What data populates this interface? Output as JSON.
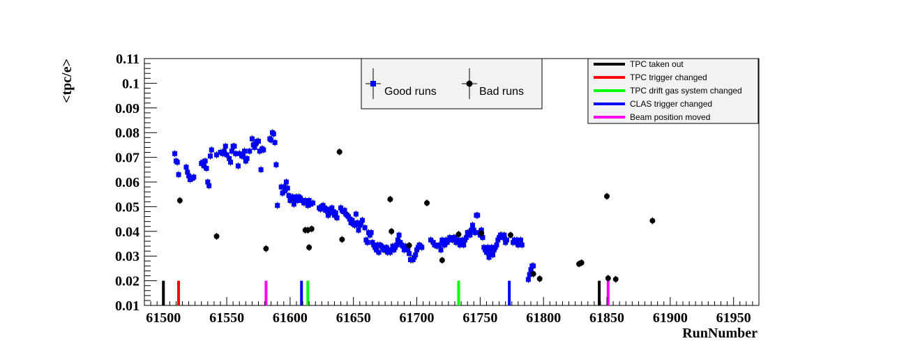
{
  "chart_data": {
    "type": "scatter",
    "xlabel": "RunNumber",
    "ylabel": "<tpc/e>",
    "xlim": [
      61485,
      61970
    ],
    "ylim": [
      0.01,
      0.11
    ],
    "xticks": [
      61500,
      61550,
      61600,
      61650,
      61700,
      61750,
      61800,
      61850,
      61900,
      61950
    ],
    "xtick_labels": [
      "61500",
      "61550",
      "61600",
      "61650",
      "61700",
      "61750",
      "61800",
      "61850",
      "61900",
      "61950"
    ],
    "yticks": [
      0.01,
      0.02,
      0.03,
      0.04,
      0.05,
      0.06,
      0.07,
      0.08,
      0.09,
      0.1,
      0.11
    ],
    "ytick_labels": [
      "0.01",
      "0.02",
      "0.03",
      "0.04",
      "0.05",
      "0.06",
      "0.07",
      "0.08",
      "0.09",
      "0.1",
      "0.11"
    ],
    "grid": false,
    "series": [
      {
        "name": "Good runs",
        "color": "#0000ff",
        "marker": "square",
        "points": [
          [
            61509,
            0.0715
          ],
          [
            61510,
            0.0685
          ],
          [
            61511,
            0.068
          ],
          [
            61512,
            0.063
          ],
          [
            61518,
            0.066
          ],
          [
            61519,
            0.064
          ],
          [
            61520,
            0.0625
          ],
          [
            61521,
            0.061
          ],
          [
            61523,
            0.0615
          ],
          [
            61524,
            0.062
          ],
          [
            61530,
            0.0675
          ],
          [
            61531,
            0.068
          ],
          [
            61532,
            0.0665
          ],
          [
            61533,
            0.0685
          ],
          [
            61534,
            0.0655
          ],
          [
            61535,
            0.06
          ],
          [
            61536,
            0.0585
          ],
          [
            61537,
            0.0705
          ],
          [
            61538,
            0.073
          ],
          [
            61542,
            0.071
          ],
          [
            61545,
            0.072
          ],
          [
            61547,
            0.0715
          ],
          [
            61548,
            0.0725
          ],
          [
            61549,
            0.0745
          ],
          [
            61550,
            0.071
          ],
          [
            61552,
            0.0695
          ],
          [
            61553,
            0.068
          ],
          [
            61554,
            0.0725
          ],
          [
            61555,
            0.0745
          ],
          [
            61556,
            0.0745
          ],
          [
            61557,
            0.0715
          ],
          [
            61559,
            0.0665
          ],
          [
            61560,
            0.0715
          ],
          [
            61562,
            0.0705
          ],
          [
            61563,
            0.0705
          ],
          [
            61564,
            0.0725
          ],
          [
            61565,
            0.0685
          ],
          [
            61566,
            0.0695
          ],
          [
            61568,
            0.0725
          ],
          [
            61570,
            0.0775
          ],
          [
            61571,
            0.075
          ],
          [
            61572,
            0.074
          ],
          [
            61573,
            0.0755
          ],
          [
            61574,
            0.0765
          ],
          [
            61575,
            0.0765
          ],
          [
            61576,
            0.0725
          ],
          [
            61577,
            0.065
          ],
          [
            61578,
            0.0735
          ],
          [
            61579,
            0.073
          ],
          [
            61584,
            0.0775
          ],
          [
            61585,
            0.077
          ],
          [
            61586,
            0.08
          ],
          [
            61587,
            0.0795
          ],
          [
            61588,
            0.076
          ],
          [
            61589,
            0.067
          ],
          [
            61590,
            0.0505
          ],
          [
            61593,
            0.058
          ],
          [
            61594,
            0.0555
          ],
          [
            61595,
            0.058
          ],
          [
            61596,
            0.0565
          ],
          [
            61597,
            0.06
          ],
          [
            61598,
            0.0575
          ],
          [
            61599,
            0.0545
          ],
          [
            61600,
            0.0525
          ],
          [
            61601,
            0.0535
          ],
          [
            61602,
            0.054
          ],
          [
            61603,
            0.051
          ],
          [
            61604,
            0.0525
          ],
          [
            61605,
            0.054
          ],
          [
            61606,
            0.0525
          ],
          [
            61607,
            0.054
          ],
          [
            61608,
            0.0535
          ],
          [
            61609,
            0.0525
          ],
          [
            61610,
            0.0525
          ],
          [
            61611,
            0.0515
          ],
          [
            61612,
            0.0525
          ],
          [
            61613,
            0.052
          ],
          [
            61614,
            0.0505
          ],
          [
            61615,
            0.0525
          ],
          [
            61616,
            0.051
          ],
          [
            61618,
            0.0515
          ],
          [
            61623,
            0.0495
          ],
          [
            61624,
            0.049
          ],
          [
            61625,
            0.05
          ],
          [
            61626,
            0.0505
          ],
          [
            61627,
            0.0495
          ],
          [
            61628,
            0.0485
          ],
          [
            61629,
            0.049
          ],
          [
            61630,
            0.0465
          ],
          [
            61631,
            0.0485
          ],
          [
            61632,
            0.0475
          ],
          [
            61633,
            0.0495
          ],
          [
            61634,
            0.048
          ],
          [
            61635,
            0.0465
          ],
          [
            61636,
            0.0475
          ],
          [
            61637,
            0.0455
          ],
          [
            61640,
            0.0495
          ],
          [
            61641,
            0.0485
          ],
          [
            61642,
            0.048
          ],
          [
            61643,
            0.0485
          ],
          [
            61644,
            0.047
          ],
          [
            61645,
            0.0465
          ],
          [
            61646,
            0.046
          ],
          [
            61647,
            0.045
          ],
          [
            61648,
            0.0435
          ],
          [
            61649,
            0.0445
          ],
          [
            61650,
            0.043
          ],
          [
            61651,
            0.0425
          ],
          [
            61652,
            0.047
          ],
          [
            61653,
            0.0435
          ],
          [
            61654,
            0.0405
          ],
          [
            61655,
            0.0425
          ],
          [
            61656,
            0.0435
          ],
          [
            61657,
            0.0445
          ],
          [
            61659,
            0.0415
          ],
          [
            61660,
            0.0365
          ],
          [
            61661,
            0.0355
          ],
          [
            61662,
            0.0395
          ],
          [
            61663,
            0.0385
          ],
          [
            61664,
            0.0395
          ],
          [
            61665,
            0.0355
          ],
          [
            61666,
            0.0345
          ],
          [
            61667,
            0.0335
          ],
          [
            61668,
            0.0325
          ],
          [
            61669,
            0.0345
          ],
          [
            61670,
            0.0315
          ],
          [
            61671,
            0.0345
          ],
          [
            61672,
            0.034
          ],
          [
            61673,
            0.0335
          ],
          [
            61674,
            0.0325
          ],
          [
            61675,
            0.0325
          ],
          [
            61676,
            0.0335
          ],
          [
            61677,
            0.0315
          ],
          [
            61678,
            0.0325
          ],
          [
            61679,
            0.0315
          ],
          [
            61680,
            0.0325
          ],
          [
            61681,
            0.034
          ],
          [
            61682,
            0.0325
          ],
          [
            61683,
            0.0335
          ],
          [
            61684,
            0.0345
          ],
          [
            61685,
            0.0365
          ],
          [
            61686,
            0.0385
          ],
          [
            61687,
            0.0355
          ],
          [
            61688,
            0.0345
          ],
          [
            61689,
            0.034
          ],
          [
            61690,
            0.0325
          ],
          [
            61691,
            0.034
          ],
          [
            61692,
            0.0335
          ],
          [
            61693,
            0.0325
          ],
          [
            61694,
            0.031
          ],
          [
            61695,
            0.0285
          ],
          [
            61696,
            0.0285
          ],
          [
            61697,
            0.0285
          ],
          [
            61698,
            0.0295
          ],
          [
            61699,
            0.0305
          ],
          [
            61700,
            0.0325
          ],
          [
            61701,
            0.0335
          ],
          [
            61702,
            0.0345
          ],
          [
            61703,
            0.034
          ],
          [
            61704,
            0.0335
          ],
          [
            61711,
            0.0365
          ],
          [
            61713,
            0.0355
          ],
          [
            61714,
            0.0345
          ],
          [
            61716,
            0.034
          ],
          [
            61718,
            0.0345
          ],
          [
            61719,
            0.0325
          ],
          [
            61720,
            0.0365
          ],
          [
            61721,
            0.0355
          ],
          [
            61722,
            0.0345
          ],
          [
            61723,
            0.0365
          ],
          [
            61724,
            0.0355
          ],
          [
            61725,
            0.0365
          ],
          [
            61726,
            0.0375
          ],
          [
            61727,
            0.037
          ],
          [
            61728,
            0.0365
          ],
          [
            61729,
            0.0375
          ],
          [
            61730,
            0.0375
          ],
          [
            61731,
            0.0355
          ],
          [
            61732,
            0.0365
          ],
          [
            61733,
            0.0365
          ],
          [
            61734,
            0.0345
          ],
          [
            61735,
            0.0355
          ],
          [
            61736,
            0.0365
          ],
          [
            61737,
            0.0345
          ],
          [
            61738,
            0.0365
          ],
          [
            61739,
            0.0375
          ],
          [
            61740,
            0.0395
          ],
          [
            61741,
            0.0395
          ],
          [
            61742,
            0.0385
          ],
          [
            61743,
            0.0405
          ],
          [
            61744,
            0.0425
          ],
          [
            61745,
            0.0405
          ],
          [
            61746,
            0.0395
          ],
          [
            61747,
            0.0465
          ],
          [
            61748,
            0.0465
          ],
          [
            61749,
            0.0395
          ],
          [
            61750,
            0.0385
          ],
          [
            61751,
            0.0405
          ],
          [
            61752,
            0.0375
          ],
          [
            61753,
            0.0335
          ],
          [
            61754,
            0.0325
          ],
          [
            61755,
            0.0315
          ],
          [
            61756,
            0.0335
          ],
          [
            61757,
            0.0295
          ],
          [
            61758,
            0.0315
          ],
          [
            61759,
            0.0335
          ],
          [
            61760,
            0.0305
          ],
          [
            61761,
            0.0325
          ],
          [
            61762,
            0.0335
          ],
          [
            61763,
            0.0345
          ],
          [
            61764,
            0.0365
          ],
          [
            61765,
            0.0375
          ],
          [
            61766,
            0.0385
          ],
          [
            61767,
            0.0385
          ],
          [
            61768,
            0.0375
          ],
          [
            61769,
            0.0385
          ],
          [
            61770,
            0.0355
          ],
          [
            61771,
            0.0365
          ],
          [
            61776,
            0.0355
          ],
          [
            61777,
            0.0365
          ],
          [
            61778,
            0.0355
          ],
          [
            61779,
            0.0365
          ],
          [
            61780,
            0.0345
          ],
          [
            61782,
            0.0365
          ],
          [
            61783,
            0.0345
          ],
          [
            61788,
            0.0205
          ],
          [
            61789,
            0.0225
          ],
          [
            61790,
            0.0245
          ],
          [
            61791,
            0.026
          ],
          [
            61792,
            0.026
          ]
        ]
      },
      {
        "name": "Bad runs",
        "color": "#000000",
        "marker": "circle",
        "points": [
          [
            61513,
            0.0525
          ],
          [
            61542,
            0.038
          ],
          [
            61581,
            0.033
          ],
          [
            61612,
            0.0405
          ],
          [
            61614,
            0.0405
          ],
          [
            61615,
            0.0335
          ],
          [
            61617,
            0.041
          ],
          [
            61639,
            0.0722
          ],
          [
            61641,
            0.0367
          ],
          [
            61679,
            0.053
          ],
          [
            61680,
            0.04
          ],
          [
            61694,
            0.0343
          ],
          [
            61708,
            0.0515
          ],
          [
            61720,
            0.0283
          ],
          [
            61733,
            0.0388
          ],
          [
            61751,
            0.0392
          ],
          [
            61774,
            0.0385
          ],
          [
            61792,
            0.0228
          ],
          [
            61797,
            0.0208
          ],
          [
            61828,
            0.0268
          ],
          [
            61830,
            0.0273
          ],
          [
            61850,
            0.0542
          ],
          [
            61851,
            0.021
          ],
          [
            61857,
            0.0206
          ],
          [
            61886,
            0.0443
          ]
        ]
      }
    ],
    "markers": [
      {
        "name": "TPC taken out",
        "color": "#000000",
        "x": [
          61500,
          61844
        ]
      },
      {
        "name": "TPC trigger changed",
        "color": "#ff0000",
        "x": [
          61512
        ]
      },
      {
        "name": "TPC drift gas system changed",
        "color": "#00ff00",
        "x": [
          61614,
          61733
        ]
      },
      {
        "name": "CLAS trigger changed",
        "color": "#0000ff",
        "x": [
          61609,
          61773
        ]
      },
      {
        "name": "Beam position moved",
        "color": "#ff00ff",
        "x": [
          61581,
          61851
        ]
      }
    ]
  }
}
